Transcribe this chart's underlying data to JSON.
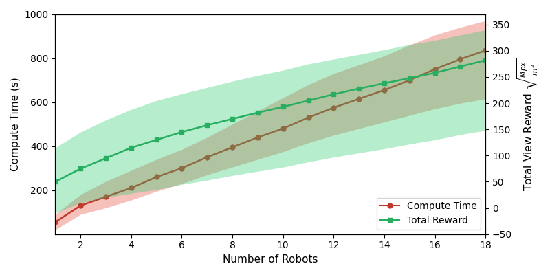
{
  "robots": [
    1,
    2,
    3,
    4,
    5,
    6,
    7,
    8,
    9,
    10,
    11,
    12,
    13,
    14,
    15,
    16,
    17,
    18
  ],
  "compute_time_mean": [
    55,
    130,
    170,
    210,
    260,
    300,
    350,
    395,
    440,
    480,
    530,
    575,
    615,
    655,
    700,
    750,
    795,
    835
  ],
  "compute_time_lower": [
    20,
    90,
    120,
    155,
    195,
    230,
    270,
    305,
    340,
    375,
    415,
    450,
    480,
    510,
    540,
    570,
    595,
    615
  ],
  "compute_time_upper": [
    90,
    180,
    240,
    290,
    340,
    385,
    440,
    500,
    560,
    620,
    680,
    730,
    770,
    810,
    860,
    905,
    940,
    970
  ],
  "total_reward_mean": [
    50,
    75,
    95,
    115,
    130,
    145,
    158,
    170,
    182,
    193,
    205,
    217,
    228,
    238,
    248,
    258,
    270,
    282
  ],
  "total_reward_lower": [
    -10,
    10,
    20,
    28,
    35,
    45,
    53,
    62,
    70,
    78,
    88,
    97,
    105,
    113,
    122,
    130,
    140,
    148
  ],
  "total_reward_upper": [
    115,
    145,
    168,
    188,
    205,
    218,
    230,
    242,
    253,
    263,
    275,
    284,
    293,
    302,
    312,
    320,
    330,
    340
  ],
  "compute_time_color": "#c0392b",
  "compute_time_fill_color": "#e74c3c",
  "total_reward_color": "#27ae60",
  "total_reward_fill_color": "#2ecc71",
  "xlabel": "Number of Robots",
  "ylabel_left": "Compute Time (s)",
  "ylabel_right": "Total View Reward $\\sqrt{\\frac{Mpx}{m^2}}$",
  "xlim": [
    1,
    18
  ],
  "ylim_left": [
    0,
    1000
  ],
  "ylim_right": [
    -50,
    370
  ],
  "xticks": [
    2,
    4,
    6,
    8,
    10,
    12,
    14,
    16,
    18
  ],
  "yticks_left": [
    200,
    400,
    600,
    800,
    1000
  ],
  "yticks_right": [
    -50,
    0,
    50,
    100,
    150,
    200,
    250,
    300,
    350
  ]
}
